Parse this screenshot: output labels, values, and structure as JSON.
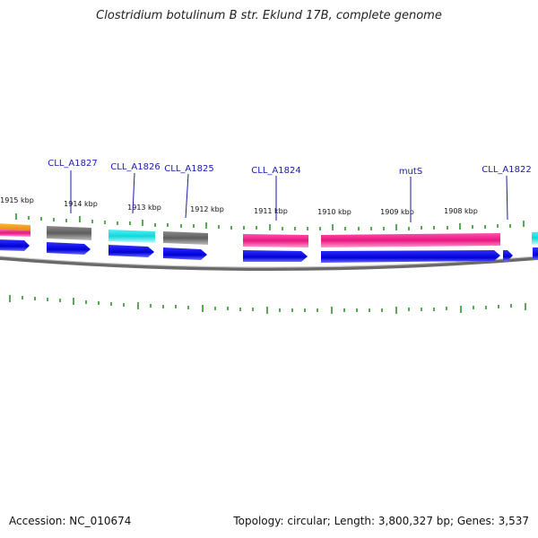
{
  "title": "Clostridium botulinum B str. Eklund 17B, complete genome",
  "footer": {
    "accession": "Accession: NC_010674",
    "topology": "Topology: circular; Length: 3,800,327 bp; Genes: 3,537"
  },
  "colors": {
    "backbone": "#8a8a8a",
    "tick": "#1f8a1f",
    "cds": "#0a0ae0",
    "gene_label": "#1a1aa8",
    "pink": "#f01a8c",
    "gray": "#6e6e6e",
    "cyan": "#19e0e6",
    "orange": "#f0a01e"
  },
  "kbp_labels": [
    "1915 kbp",
    "1914 kbp",
    "1913 kbp",
    "1912 kbp",
    "1911 kbp",
    "1910 kbp",
    "1909 kbp",
    "1908 kbp"
  ],
  "gene_labels": [
    "CLL_A1827",
    "CLL_A1826",
    "CLL_A1825",
    "CLL_A1824",
    "mutS",
    "CLL_A1822"
  ]
}
